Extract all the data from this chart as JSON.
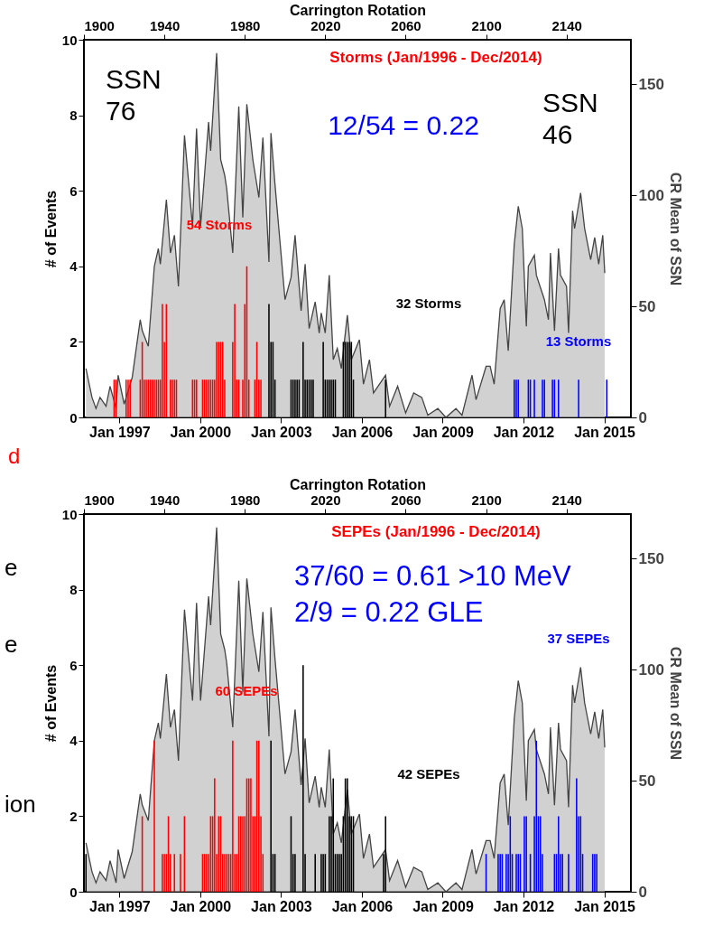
{
  "chart_data": [
    {
      "type": "bar",
      "title": "Storms (Jan/1996 - Dec/2014)",
      "ylabel": "# of Events",
      "y2label": "CR Mean of SSN",
      "xlabel": "Carrington Rotation",
      "annotations": [
        "SSN\n76",
        "12/54 = 0.22",
        "SSN\n46",
        "d"
      ],
      "x2lim": [
        "1995-09-07",
        "2015-12-28"
      ],
      "x2ticks": [
        {
          "value": "1997-01",
          "label": "Jan 1997"
        },
        {
          "value": "2000-01",
          "label": "Jan 2000"
        },
        {
          "value": "2003-01",
          "label": "Jan 2003"
        },
        {
          "value": "2006-01",
          "label": "Jan 2006"
        },
        {
          "value": "2009-01",
          "label": "Jan 2009"
        },
        {
          "value": "2012-01",
          "label": "Jan 2012"
        },
        {
          "value": "2015-01",
          "label": "Jan 2015"
        }
      ],
      "xlim": [
        1900,
        2172
      ],
      "xticks": [
        1900,
        1940,
        1980,
        2020,
        2060,
        2100,
        2140
      ],
      "ylim": [
        0,
        10
      ],
      "yticks": [
        0,
        2,
        4,
        6,
        8,
        10
      ],
      "y2lim": [
        0,
        170
      ],
      "y2ticks": [
        0,
        50,
        100,
        150
      ],
      "series": [
        {
          "type": "area",
          "axis": "y2",
          "color": "#bebebe",
          "x": [
            1901,
            1904,
            1906,
            1908,
            1911,
            1913,
            1916,
            1917,
            1920,
            1924,
            1928,
            1929,
            1932,
            1935,
            1937,
            1938,
            1941,
            1943,
            1945,
            1947,
            1950,
            1954,
            1956,
            1958,
            1962,
            1963,
            1966,
            1968,
            1970,
            1971,
            1974,
            1977,
            1979,
            1981,
            1984,
            1987,
            1989,
            1992,
            1993,
            1995,
            2000,
            2003,
            2005,
            2008,
            2010,
            2012,
            2015,
            2017,
            2018,
            2020,
            2022,
            2024,
            2026,
            2028,
            2031,
            2033,
            2037,
            2039,
            2042,
            2044,
            2047,
            2050,
            2052,
            2056,
            2060,
            2064,
            2068,
            2071,
            2076,
            2080,
            2085,
            2088,
            2093,
            2095,
            2100,
            2102,
            2104,
            2107,
            2109,
            2111,
            2114,
            2116,
            2118,
            2120,
            2121,
            2124,
            2125,
            2129,
            2131,
            2132,
            2134,
            2136,
            2137,
            2140,
            2141,
            2143,
            2144,
            2147,
            2149,
            2152,
            2154,
            2156,
            2158,
            2159
          ],
          "values": [
            22,
            9,
            4,
            9,
            5,
            14,
            4,
            19,
            6,
            18,
            44,
            39,
            32,
            68,
            76,
            69,
            98,
            74,
            82,
            59,
            127,
            86,
            130,
            86,
            133,
            120,
            164,
            116,
            109,
            103,
            74,
            140,
            90,
            141,
            116,
            99,
            126,
            70,
            128,
            105,
            53,
            63,
            82,
            48,
            69,
            40,
            52,
            38,
            47,
            38,
            64,
            26,
            31,
            22,
            46,
            26,
            35,
            15,
            26,
            11,
            15,
            19,
            5,
            14,
            2,
            11,
            9,
            1,
            4,
            0,
            4,
            1,
            19,
            8,
            23,
            23,
            15,
            49,
            53,
            30,
            78,
            95,
            85,
            41,
            68,
            73,
            64,
            53,
            44,
            74,
            39,
            76,
            64,
            59,
            38,
            93,
            85,
            101,
            85,
            71,
            81,
            69,
            82,
            65
          ]
        },
        {
          "name": "54 Storms",
          "color": "#ff0000",
          "x": [
            1915,
            1916,
            1921,
            1922,
            1923,
            1928,
            1929,
            1930,
            1931,
            1932,
            1933,
            1934,
            1935,
            1936,
            1937,
            1938,
            1939,
            1940,
            1941,
            1943,
            1944,
            1945,
            1946,
            1954,
            1955,
            1956,
            1959,
            1960,
            1961,
            1962,
            1963,
            1964,
            1965,
            1966,
            1967,
            1968,
            1969,
            1970,
            1974,
            1975,
            1976,
            1977,
            1979,
            1980,
            1981,
            1982,
            1985,
            1986,
            1987,
            1988
          ],
          "values": [
            1,
            1,
            1,
            1,
            1,
            1,
            2,
            1,
            1,
            1,
            1,
            1,
            1,
            1,
            1,
            1,
            3,
            2,
            3,
            1,
            1,
            1,
            1,
            1,
            1,
            1,
            1,
            1,
            1,
            1,
            1,
            1,
            1,
            2,
            2,
            2,
            2,
            1,
            2,
            3,
            1,
            1,
            1,
            3,
            4,
            1,
            1,
            2,
            1,
            1
          ]
        },
        {
          "name": "32 Storms",
          "color": "#000000",
          "x": [
            1992,
            1993,
            1994,
            1995,
            2003,
            2004,
            2005,
            2006,
            2007,
            2009,
            2010,
            2011,
            2012,
            2013,
            2014,
            2019,
            2020,
            2021,
            2022,
            2023,
            2024,
            2025,
            2029,
            2030,
            2031,
            2032,
            2033,
            2034,
            2050
          ],
          "values": [
            3,
            2,
            2,
            1,
            1,
            1,
            1,
            1,
            1,
            2,
            1,
            1,
            1,
            1,
            1,
            2,
            1,
            1,
            1,
            1,
            1,
            1,
            2,
            2,
            2,
            2,
            2,
            1,
            1
          ]
        },
        {
          "name": "13 Storms",
          "color": "#0000ff",
          "x": [
            2114,
            2115,
            2116,
            2121,
            2122,
            2124,
            2128,
            2129,
            2133,
            2134,
            2136,
            2146,
            2160
          ],
          "values": [
            1,
            1,
            1,
            1,
            1,
            1,
            1,
            1,
            1,
            1,
            1,
            1,
            1
          ]
        }
      ]
    },
    {
      "type": "bar",
      "title": "SEPEs (Jan/1996 - Dec/2014)",
      "ylabel": "# of Events",
      "y2label": "CR Mean of SSN",
      "xlabel": "Carrington Rotation",
      "annotations": [
        "37/60 = 0.61 >10 MeV",
        "2/9 = 0.22 GLE",
        "e",
        "e",
        "ion"
      ],
      "x2lim": [
        "1995-09-07",
        "2015-12-28"
      ],
      "x2ticks": [
        {
          "value": "1997-01",
          "label": "Jan 1997"
        },
        {
          "value": "2000-01",
          "label": "Jan 2000"
        },
        {
          "value": "2003-01",
          "label": "Jan 2003"
        },
        {
          "value": "2006-01",
          "label": "Jan 2006"
        },
        {
          "value": "2009-01",
          "label": "Jan 2009"
        },
        {
          "value": "2012-01",
          "label": "Jan 2012"
        },
        {
          "value": "2015-01",
          "label": "Jan 2015"
        }
      ],
      "xlim": [
        1900,
        2172
      ],
      "xticks": [
        1900,
        1940,
        1980,
        2020,
        2060,
        2100,
        2140
      ],
      "ylim": [
        0,
        10
      ],
      "yticks": [
        0,
        2,
        4,
        6,
        8,
        10
      ],
      "y2lim": [
        0,
        170
      ],
      "y2ticks": [
        0,
        50,
        100,
        150
      ],
      "series": [
        {
          "type": "area",
          "axis": "y2",
          "color": "#bebebe",
          "x": [
            1901,
            1904,
            1906,
            1908,
            1911,
            1913,
            1916,
            1917,
            1920,
            1924,
            1928,
            1929,
            1932,
            1935,
            1937,
            1938,
            1941,
            1943,
            1945,
            1947,
            1950,
            1954,
            1956,
            1958,
            1962,
            1963,
            1966,
            1968,
            1970,
            1971,
            1974,
            1977,
            1979,
            1981,
            1984,
            1987,
            1989,
            1992,
            1993,
            1995,
            2000,
            2003,
            2005,
            2008,
            2010,
            2012,
            2015,
            2017,
            2018,
            2020,
            2022,
            2024,
            2026,
            2028,
            2031,
            2033,
            2037,
            2039,
            2042,
            2044,
            2047,
            2050,
            2052,
            2056,
            2060,
            2064,
            2068,
            2071,
            2076,
            2080,
            2085,
            2088,
            2093,
            2095,
            2100,
            2102,
            2104,
            2107,
            2109,
            2111,
            2114,
            2116,
            2118,
            2120,
            2121,
            2124,
            2125,
            2129,
            2131,
            2132,
            2134,
            2136,
            2137,
            2140,
            2141,
            2143,
            2144,
            2147,
            2149,
            2152,
            2154,
            2156,
            2158,
            2159
          ],
          "values": [
            22,
            9,
            4,
            9,
            5,
            14,
            4,
            19,
            6,
            18,
            44,
            39,
            32,
            68,
            76,
            69,
            98,
            74,
            82,
            59,
            127,
            86,
            130,
            86,
            133,
            120,
            164,
            116,
            109,
            103,
            74,
            140,
            90,
            141,
            116,
            99,
            126,
            70,
            128,
            105,
            53,
            63,
            82,
            48,
            69,
            40,
            52,
            38,
            47,
            38,
            64,
            26,
            31,
            22,
            46,
            26,
            35,
            15,
            26,
            11,
            15,
            19,
            5,
            14,
            2,
            11,
            9,
            1,
            4,
            0,
            4,
            1,
            19,
            8,
            23,
            23,
            15,
            49,
            53,
            30,
            78,
            95,
            85,
            41,
            68,
            73,
            64,
            53,
            44,
            74,
            39,
            76,
            64,
            59,
            38,
            93,
            85,
            101,
            85,
            71,
            81,
            69,
            82,
            65
          ]
        },
        {
          "name": "60 SEPEs",
          "color": "#ff0000",
          "x": [
            1929,
            1935,
            1939,
            1940,
            1941,
            1942,
            1943,
            1945,
            1948,
            1950,
            1959,
            1960,
            1961,
            1962,
            1963,
            1964,
            1965,
            1966,
            1967,
            1968,
            1969,
            1970,
            1971,
            1972,
            1973,
            1974,
            1975,
            1976,
            1977,
            1978,
            1979,
            1980,
            1981,
            1982,
            1983,
            1984,
            1985,
            1986,
            1987,
            1988,
            1989
          ],
          "values": [
            2,
            4,
            1,
            1,
            1,
            2,
            1,
            1,
            1,
            2,
            1,
            1,
            1,
            1,
            2,
            2,
            3,
            1,
            2,
            2,
            1,
            1,
            1,
            1,
            1,
            4,
            1,
            1,
            2,
            2,
            2,
            2,
            3,
            3,
            3,
            2,
            2,
            4,
            4,
            2,
            1
          ]
        },
        {
          "name": "42 SEPEs",
          "color": "#000000",
          "x": [
            1901,
            1993,
            1994,
            1995,
            2003,
            2004,
            2005,
            2009,
            2010,
            2015,
            2018,
            2019,
            2020,
            2022,
            2023,
            2024,
            2025,
            2026,
            2027,
            2028,
            2029,
            2030,
            2031,
            2032,
            2033,
            2034,
            2049,
            2050
          ],
          "values": [
            1,
            4,
            1,
            1,
            2,
            1,
            1,
            6,
            1,
            1,
            1,
            1,
            1,
            2,
            2,
            3,
            1,
            1,
            1,
            1,
            2,
            3,
            3,
            2,
            2,
            2,
            1,
            2
          ]
        },
        {
          "name": "37 SEPEs",
          "color": "#0000ff",
          "x": [
            2100,
            2106,
            2107,
            2108,
            2110,
            2111,
            2112,
            2113,
            2115,
            2116,
            2117,
            2119,
            2120,
            2122,
            2124,
            2125,
            2126,
            2127,
            2128,
            2134,
            2135,
            2136,
            2137,
            2138,
            2141,
            2145,
            2146,
            2147,
            2148,
            2153,
            2154,
            2155
          ],
          "values": [
            1,
            1,
            1,
            1,
            1,
            1,
            2,
            1,
            1,
            1,
            1,
            2,
            2,
            1,
            2,
            4,
            2,
            2,
            1,
            1,
            1,
            2,
            1,
            1,
            1,
            3,
            2,
            2,
            1,
            1,
            1,
            1
          ]
        }
      ]
    }
  ]
}
